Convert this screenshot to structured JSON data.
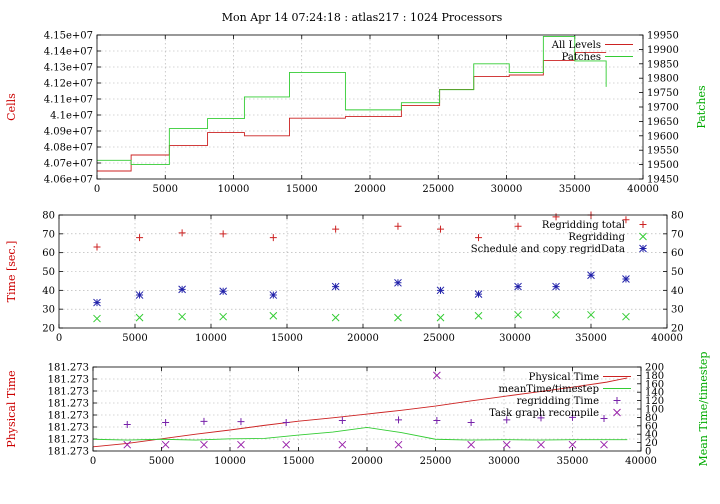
{
  "title": "Mon Apr 14 07:24:18 : atlas217 : 1024 Processors",
  "colors": {
    "red": "#cc2222",
    "green": "#33cc33",
    "blue": "#2222aa",
    "magenta": "#9922aa",
    "purple": "#7722aa"
  },
  "chart_data": [
    {
      "type": "line",
      "ylabel": "Cells",
      "y2label": "Patches",
      "xlim": [
        0,
        40000
      ],
      "ylim": [
        40600000,
        41500000
      ],
      "y2lim": [
        19450,
        19950
      ],
      "xticks": [
        "0",
        "5000",
        "10000",
        "15000",
        "20000",
        "25000",
        "30000",
        "35000",
        "40000"
      ],
      "yticks": [
        "4.06e+07",
        "4.07e+07",
        "4.08e+07",
        "4.09e+07",
        "4.1e+07",
        "4.11e+07",
        "4.12e+07",
        "4.13e+07",
        "4.14e+07",
        "4.15e+07"
      ],
      "y2ticks": [
        "19450",
        "19500",
        "19550",
        "19600",
        "19650",
        "19700",
        "19750",
        "19800",
        "19850",
        "19900",
        "19950"
      ],
      "grid": true,
      "legend_position": "top-right",
      "series": [
        {
          "name": "All Levels",
          "axis": "y",
          "color": "#cc2222",
          "step": true,
          "x": [
            0,
            2500,
            5300,
            8100,
            10800,
            14100,
            18200,
            22300,
            25100,
            27600,
            30200,
            32700,
            35000,
            37300
          ],
          "y": [
            40650000,
            40750000,
            40810000,
            40890000,
            40870000,
            40980000,
            40990000,
            41060000,
            41160000,
            41240000,
            41250000,
            41340000,
            41390000,
            41390000
          ]
        },
        {
          "name": "Patches",
          "axis": "y2",
          "color": "#33cc33",
          "step": true,
          "x": [
            0,
            2500,
            5300,
            8100,
            10800,
            14100,
            18200,
            22300,
            25100,
            27600,
            30200,
            32700,
            35000,
            37300
          ],
          "y": [
            19515,
            19500,
            19625,
            19660,
            19735,
            19820,
            19690,
            19715,
            19760,
            19850,
            19820,
            19945,
            19860,
            19770
          ]
        }
      ]
    },
    {
      "type": "scatter",
      "ylabel": "Time [sec.]",
      "xlim": [
        0,
        40000
      ],
      "ylim": [
        20,
        80
      ],
      "y2lim": [
        20,
        80
      ],
      "xticks": [
        "0",
        "5000",
        "10000",
        "15000",
        "20000",
        "25000",
        "30000",
        "35000",
        "40000"
      ],
      "yticks": [
        "20",
        "30",
        "40",
        "50",
        "60",
        "70",
        "80"
      ],
      "y2ticks": [
        "20",
        "30",
        "40",
        "50",
        "60",
        "70",
        "80"
      ],
      "grid": true,
      "legend_position": "top-right",
      "series": [
        {
          "name": "Regridding total",
          "marker": "plus",
          "color": "#cc2222",
          "x": [
            2500,
            5300,
            8100,
            10800,
            14100,
            18200,
            22300,
            25100,
            27600,
            30200,
            32700,
            35000,
            37300
          ],
          "y": [
            63,
            68,
            70.5,
            70,
            68,
            72.5,
            74,
            72.5,
            68,
            74,
            79,
            80,
            77.5
          ]
        },
        {
          "name": "Regridding",
          "marker": "cross",
          "color": "#33cc33",
          "x": [
            2500,
            5300,
            8100,
            10800,
            14100,
            18200,
            22300,
            25100,
            27600,
            30200,
            32700,
            35000,
            37300
          ],
          "y": [
            25,
            25.5,
            26,
            26,
            26.5,
            25.5,
            25.5,
            25.5,
            26.5,
            27,
            27,
            27,
            26
          ]
        },
        {
          "name": "Schedule and copy regridData",
          "marker": "star",
          "color": "#2222aa",
          "x": [
            2500,
            5300,
            8100,
            10800,
            14100,
            18200,
            22300,
            25100,
            27600,
            30200,
            32700,
            35000,
            37300
          ],
          "y": [
            33.5,
            37.5,
            40.5,
            39.5,
            37.5,
            42,
            44,
            40,
            38,
            42,
            42,
            48,
            46
          ]
        }
      ]
    },
    {
      "type": "line",
      "ylabel": "Physical Time",
      "y2label": "Mean Time/timestep",
      "xlim": [
        0,
        40000
      ],
      "ylim": [
        0,
        200
      ],
      "y2lim": [
        0,
        200
      ],
      "xticks": [
        "0",
        "5000",
        "10000",
        "15000",
        "20000",
        "25000",
        "30000",
        "35000",
        "40000"
      ],
      "yticks": [
        "181.273",
        "181.273",
        "181.273",
        "181.273",
        "181.273",
        "181.273",
        "181.273",
        "181.273"
      ],
      "y2ticks": [
        "0",
        "20",
        "40",
        "60",
        "80",
        "100",
        "120",
        "140",
        "160",
        "180",
        "200"
      ],
      "grid": true,
      "legend_position": "top-right",
      "series": [
        {
          "name": "Physical Time",
          "axis": "y",
          "color": "#cc2222",
          "x": [
            0,
            2500,
            5000,
            7500,
            10000,
            12500,
            15000,
            17500,
            20000,
            22500,
            25000,
            27500,
            30000,
            32500,
            35000,
            37500,
            39000
          ],
          "y": [
            10,
            18,
            29,
            40,
            50,
            61,
            71,
            79,
            88,
            97,
            107,
            119,
            130,
            141,
            152,
            164,
            174
          ]
        },
        {
          "name": "meanTime/timestep",
          "axis": "y2",
          "color": "#33cc33",
          "x": [
            0,
            2500,
            5000,
            7500,
            10000,
            12500,
            15000,
            17500,
            20000,
            22500,
            25000,
            27500,
            30000,
            32500,
            35000,
            37500,
            39000
          ],
          "y": [
            28,
            26,
            28,
            26,
            29,
            30,
            38,
            45,
            56,
            44,
            28,
            26,
            27,
            26,
            27,
            27,
            27
          ]
        },
        {
          "name": "regridding Time",
          "axis": "y2",
          "color": "#7722aa",
          "marker": "plus",
          "x": [
            2500,
            5300,
            8100,
            10800,
            14100,
            18200,
            22300,
            25100,
            27600,
            30200,
            32700,
            35000,
            37300
          ],
          "y": [
            63,
            68,
            70.5,
            70,
            68,
            72.5,
            74,
            72.5,
            68,
            74,
            79,
            80,
            77.5
          ]
        },
        {
          "name": "Task graph recompile",
          "axis": "y2",
          "color": "#9922aa",
          "marker": "cross",
          "x": [
            2500,
            5300,
            8100,
            10800,
            14100,
            18200,
            22300,
            25100,
            27600,
            30200,
            32700,
            35000,
            37300
          ],
          "y": [
            15,
            15,
            15,
            15,
            15,
            15,
            15,
            180,
            15,
            15,
            15,
            15,
            15
          ]
        }
      ]
    }
  ]
}
